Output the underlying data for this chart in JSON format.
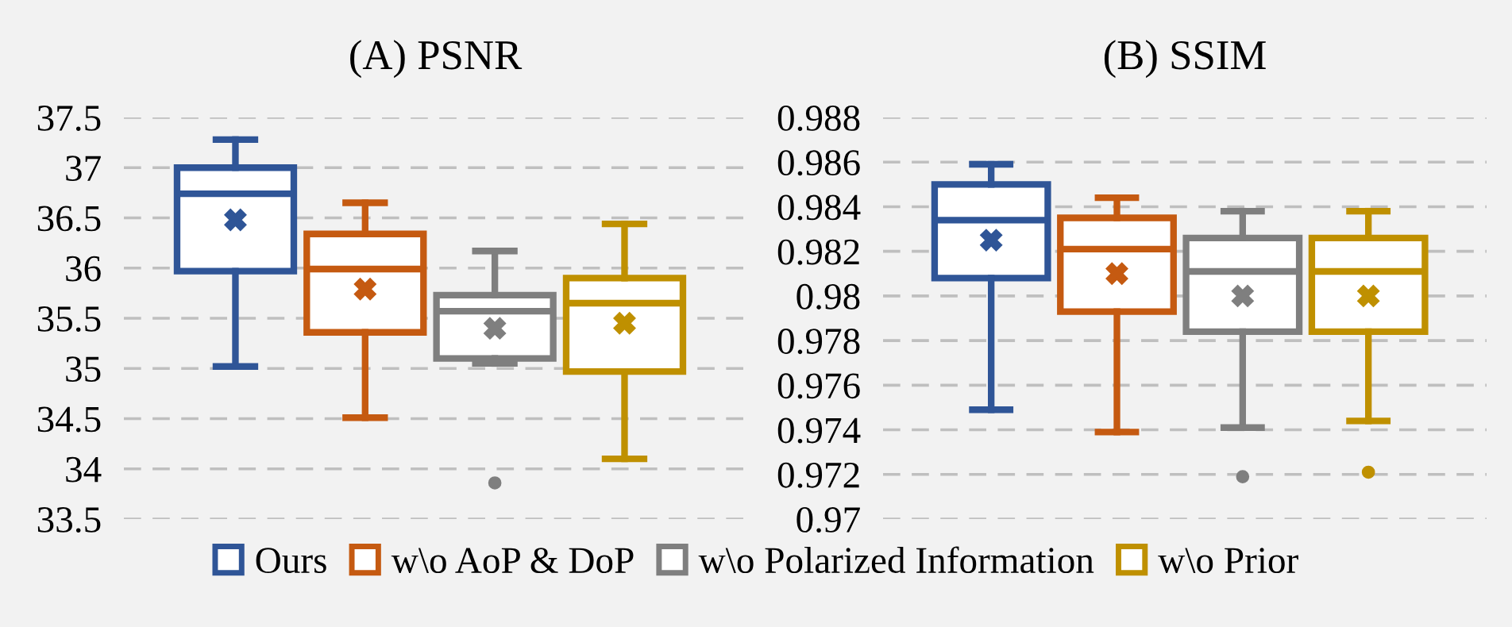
{
  "chart_data": [
    {
      "type": "box",
      "title": "(A) PSNR",
      "categories": [
        null
      ],
      "ylim": [
        33.5,
        37.5
      ],
      "yticks": [
        33.5,
        34,
        34.5,
        35,
        35.5,
        36,
        36.5,
        37,
        37.5
      ],
      "grid": "y",
      "legend": "bottom",
      "marker": "cross",
      "series": [
        {
          "name": "Ours",
          "color": "#2f5597",
          "boxes": [
            {
              "low": 35.02,
              "q1": 35.97,
              "median": 36.74,
              "q3": 37.0,
              "high": 37.28,
              "mean": 36.48
            }
          ]
        },
        {
          "name": "w\\o AoP & DoP",
          "color": "#c55a11",
          "boxes": [
            {
              "low": 34.51,
              "q1": 35.36,
              "median": 35.99,
              "q3": 36.34,
              "high": 36.65,
              "mean": 35.79
            }
          ]
        },
        {
          "name": "w\\o Polarized Information",
          "color": "#7f7f7f",
          "boxes": [
            {
              "low": 35.05,
              "q1": 35.1,
              "median": 35.57,
              "q3": 35.73,
              "high": 36.17,
              "mean": 35.4,
              "outliers": [
                33.86
              ]
            }
          ]
        },
        {
          "name": "w\\o Prior",
          "color": "#bf9000",
          "boxes": [
            {
              "low": 34.1,
              "q1": 34.97,
              "median": 35.65,
              "q3": 35.9,
              "high": 36.44,
              "mean": 35.45
            }
          ]
        }
      ]
    },
    {
      "type": "box",
      "title": "(B) SSIM",
      "categories": [
        null
      ],
      "ylim": [
        0.97,
        0.988
      ],
      "yticks": [
        0.97,
        0.972,
        0.974,
        0.976,
        0.978,
        0.98,
        0.982,
        0.984,
        0.986,
        0.988
      ],
      "grid": "y",
      "marker": "cross",
      "series": [
        {
          "color": "#2f5597",
          "boxes": [
            {
              "low": 0.9749,
              "q1": 0.9808,
              "median": 0.9834,
              "q3": 0.985,
              "high": 0.9859,
              "mean": 0.9825
            }
          ]
        },
        {
          "color": "#c55a11",
          "boxes": [
            {
              "low": 0.9739,
              "q1": 0.9793,
              "median": 0.9821,
              "q3": 0.9835,
              "high": 0.9844,
              "mean": 0.981
            }
          ]
        },
        {
          "color": "#7f7f7f",
          "boxes": [
            {
              "low": 0.9741,
              "q1": 0.9784,
              "median": 0.9811,
              "q3": 0.9826,
              "high": 0.9838,
              "mean": 0.98,
              "outliers": [
                0.9719
              ]
            }
          ]
        },
        {
          "color": "#bf9000",
          "boxes": [
            {
              "low": 0.9744,
              "q1": 0.9784,
              "median": 0.9811,
              "q3": 0.9826,
              "high": 0.9838,
              "mean": 0.98,
              "outliers": [
                0.9721
              ]
            }
          ]
        }
      ]
    }
  ]
}
